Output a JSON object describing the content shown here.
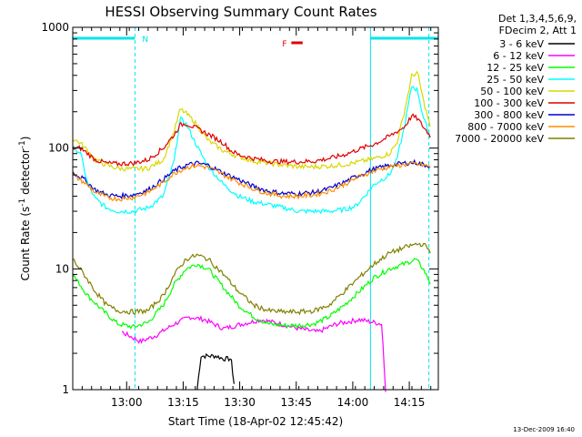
{
  "chart_data": {
    "type": "line",
    "title": "HESSI Observing Summary Count Rates",
    "xlabel": "Start Time (18-Apr-02 12:45:42)",
    "ylabel": "Count Rate (s⁻¹ detector⁻¹)",
    "yscale": "log",
    "ylim": [
      1,
      1000
    ],
    "xlim_minutes": [
      0,
      97
    ],
    "x_ticks": [
      "13:00",
      "13:15",
      "13:30",
      "13:45",
      "14:00",
      "14:15"
    ],
    "x_tick_minutes": [
      14.3,
      29.3,
      44.3,
      59.3,
      74.3,
      89.3
    ],
    "y_ticks": [
      "1",
      "10",
      "100",
      "1000"
    ],
    "y_tick_values": [
      1,
      10,
      100,
      1000
    ],
    "legend_header": [
      "Det 1,3,4,5,6,9,",
      "FDecim 2, Att 1"
    ],
    "legend_position": "right",
    "footer_date": "13-Dec-2009 16:40",
    "flags": [
      {
        "label": "N",
        "color": "#00e5ee",
        "segments": [
          [
            0,
            16.5
          ],
          [
            79,
            97
          ]
        ]
      },
      {
        "label": "F",
        "color": "#e00000",
        "segments": [
          [
            58,
            61
          ]
        ]
      }
    ],
    "vertical_markers_solid": [
      0,
      79
    ],
    "vertical_markers_dashed": [
      16.5,
      94.5
    ],
    "series": [
      {
        "name": "3 - 6 keV",
        "color": "#000000",
        "points": [
          [
            33,
            1
          ],
          [
            34,
            1.9
          ],
          [
            36,
            1.9
          ],
          [
            38,
            1.9
          ],
          [
            40,
            1.8
          ],
          [
            42,
            1.8
          ],
          [
            43,
            1
          ]
        ]
      },
      {
        "name": "6 - 12 keV",
        "color": "#ff00ff",
        "points": [
          [
            13,
            3.0
          ],
          [
            18,
            2.5
          ],
          [
            22,
            2.8
          ],
          [
            27,
            3.5
          ],
          [
            31,
            4.0
          ],
          [
            35,
            3.8
          ],
          [
            40,
            3.2
          ],
          [
            45,
            3.5
          ],
          [
            50,
            3.8
          ],
          [
            55,
            3.5
          ],
          [
            60,
            3.2
          ],
          [
            65,
            3.0
          ],
          [
            70,
            3.5
          ],
          [
            76,
            3.8
          ],
          [
            82,
            3.5
          ],
          [
            83,
            1
          ]
        ]
      },
      {
        "name": "12 - 25 keV",
        "color": "#00ff00",
        "points": [
          [
            0,
            9
          ],
          [
            4,
            6
          ],
          [
            8,
            4.5
          ],
          [
            12,
            3.5
          ],
          [
            16,
            3.3
          ],
          [
            20,
            3.6
          ],
          [
            24,
            5
          ],
          [
            27,
            7.5
          ],
          [
            30,
            10
          ],
          [
            33,
            11
          ],
          [
            36,
            10
          ],
          [
            40,
            7
          ],
          [
            44,
            5
          ],
          [
            48,
            4
          ],
          [
            52,
            3.5
          ],
          [
            56,
            3.4
          ],
          [
            60,
            3.4
          ],
          [
            64,
            3.5
          ],
          [
            68,
            4
          ],
          [
            72,
            5
          ],
          [
            76,
            6.5
          ],
          [
            80,
            8.5
          ],
          [
            84,
            10
          ],
          [
            88,
            11
          ],
          [
            91,
            12
          ],
          [
            93,
            10
          ],
          [
            95,
            7.5
          ]
        ]
      },
      {
        "name": "25 - 50 keV",
        "color": "#00ffff",
        "points": [
          [
            0,
            100
          ],
          [
            2,
            92
          ],
          [
            4,
            50
          ],
          [
            6,
            38
          ],
          [
            9,
            32
          ],
          [
            12,
            30
          ],
          [
            16,
            30
          ],
          [
            20,
            32
          ],
          [
            24,
            40
          ],
          [
            27,
            80
          ],
          [
            28.5,
            175
          ],
          [
            30,
            160
          ],
          [
            32,
            120
          ],
          [
            34,
            90
          ],
          [
            36,
            70
          ],
          [
            40,
            50
          ],
          [
            44,
            40
          ],
          [
            48,
            36
          ],
          [
            52,
            34
          ],
          [
            56,
            32
          ],
          [
            60,
            30
          ],
          [
            64,
            30
          ],
          [
            68,
            30
          ],
          [
            72,
            31
          ],
          [
            75,
            33
          ],
          [
            78,
            42
          ],
          [
            80,
            50
          ],
          [
            82,
            55
          ],
          [
            84,
            60
          ],
          [
            86,
            80
          ],
          [
            88,
            150
          ],
          [
            90,
            330
          ],
          [
            91.5,
            300
          ],
          [
            93,
            180
          ],
          [
            95,
            120
          ]
        ]
      },
      {
        "name": "50 - 100 keV",
        "color": "#d8d800",
        "points": [
          [
            0,
            120
          ],
          [
            2,
            110
          ],
          [
            4,
            95
          ],
          [
            6,
            80
          ],
          [
            9,
            72
          ],
          [
            12,
            68
          ],
          [
            16,
            67
          ],
          [
            20,
            68
          ],
          [
            24,
            80
          ],
          [
            27,
            140
          ],
          [
            28.5,
            210
          ],
          [
            30,
            195
          ],
          [
            32,
            170
          ],
          [
            34,
            140
          ],
          [
            36,
            115
          ],
          [
            40,
            95
          ],
          [
            44,
            85
          ],
          [
            48,
            78
          ],
          [
            52,
            75
          ],
          [
            56,
            72
          ],
          [
            60,
            70
          ],
          [
            64,
            70
          ],
          [
            68,
            71
          ],
          [
            72,
            73
          ],
          [
            76,
            77
          ],
          [
            80,
            82
          ],
          [
            84,
            90
          ],
          [
            86,
            110
          ],
          [
            88,
            200
          ],
          [
            90,
            400
          ],
          [
            91.5,
            420
          ],
          [
            93,
            250
          ],
          [
            95,
            145
          ]
        ]
      },
      {
        "name": "100 - 300 keV",
        "color": "#e00000",
        "points": [
          [
            0,
            100
          ],
          [
            2,
            100
          ],
          [
            4,
            90
          ],
          [
            6,
            80
          ],
          [
            9,
            75
          ],
          [
            12,
            74
          ],
          [
            16,
            75
          ],
          [
            20,
            80
          ],
          [
            24,
            100
          ],
          [
            27,
            130
          ],
          [
            28.5,
            155
          ],
          [
            30,
            160
          ],
          [
            32,
            150
          ],
          [
            34,
            140
          ],
          [
            36,
            130
          ],
          [
            38,
            120
          ],
          [
            40,
            110
          ],
          [
            42,
            95
          ],
          [
            44,
            88
          ],
          [
            48,
            82
          ],
          [
            52,
            78
          ],
          [
            56,
            77
          ],
          [
            60,
            77
          ],
          [
            64,
            78
          ],
          [
            68,
            82
          ],
          [
            72,
            88
          ],
          [
            76,
            98
          ],
          [
            80,
            108
          ],
          [
            84,
            125
          ],
          [
            88,
            150
          ],
          [
            90,
            185
          ],
          [
            91.5,
            175
          ],
          [
            93,
            150
          ],
          [
            95,
            125
          ]
        ]
      },
      {
        "name": "300 - 800 keV",
        "color": "#0000d0",
        "points": [
          [
            0,
            63
          ],
          [
            3,
            55
          ],
          [
            6,
            45
          ],
          [
            9,
            41
          ],
          [
            12,
            40
          ],
          [
            16,
            41
          ],
          [
            20,
            45
          ],
          [
            24,
            55
          ],
          [
            27,
            65
          ],
          [
            30,
            72
          ],
          [
            33,
            75
          ],
          [
            36,
            72
          ],
          [
            40,
            62
          ],
          [
            44,
            55
          ],
          [
            48,
            48
          ],
          [
            52,
            44
          ],
          [
            56,
            42
          ],
          [
            60,
            42
          ],
          [
            64,
            43
          ],
          [
            68,
            46
          ],
          [
            72,
            52
          ],
          [
            76,
            60
          ],
          [
            80,
            67
          ],
          [
            84,
            72
          ],
          [
            88,
            75
          ],
          [
            91,
            76
          ],
          [
            93,
            73
          ],
          [
            95,
            71
          ]
        ]
      },
      {
        "name": "800 - 7000 keV",
        "color": "#ff8c00",
        "points": [
          [
            0,
            60
          ],
          [
            3,
            52
          ],
          [
            6,
            43
          ],
          [
            9,
            39
          ],
          [
            12,
            38
          ],
          [
            16,
            39
          ],
          [
            20,
            43
          ],
          [
            24,
            52
          ],
          [
            27,
            62
          ],
          [
            30,
            69
          ],
          [
            33,
            72
          ],
          [
            36,
            69
          ],
          [
            40,
            60
          ],
          [
            44,
            52
          ],
          [
            48,
            46
          ],
          [
            52,
            42
          ],
          [
            56,
            40
          ],
          [
            60,
            40
          ],
          [
            64,
            41
          ],
          [
            68,
            44
          ],
          [
            72,
            50
          ],
          [
            76,
            58
          ],
          [
            80,
            65
          ],
          [
            84,
            70
          ],
          [
            88,
            73
          ],
          [
            91,
            74
          ],
          [
            93,
            72
          ],
          [
            95,
            70
          ]
        ]
      },
      {
        "name": "7000 - 20000 keV",
        "color": "#808000",
        "points": [
          [
            0,
            12
          ],
          [
            3,
            9
          ],
          [
            6,
            6.5
          ],
          [
            9,
            5
          ],
          [
            12,
            4.5
          ],
          [
            16,
            4.4
          ],
          [
            20,
            4.5
          ],
          [
            24,
            6
          ],
          [
            27,
            9
          ],
          [
            30,
            12
          ],
          [
            33,
            13
          ],
          [
            36,
            12
          ],
          [
            40,
            9
          ],
          [
            44,
            6.5
          ],
          [
            48,
            5
          ],
          [
            52,
            4.5
          ],
          [
            56,
            4.4
          ],
          [
            60,
            4.4
          ],
          [
            64,
            4.5
          ],
          [
            68,
            5
          ],
          [
            72,
            6.5
          ],
          [
            76,
            8.5
          ],
          [
            80,
            11
          ],
          [
            84,
            13.5
          ],
          [
            88,
            15
          ],
          [
            91,
            16
          ],
          [
            93,
            16
          ],
          [
            95,
            14
          ]
        ]
      }
    ]
  }
}
